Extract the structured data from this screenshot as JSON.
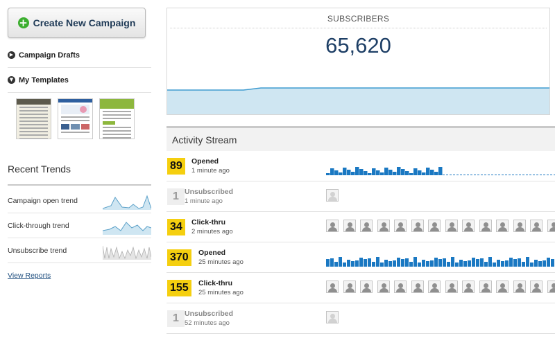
{
  "sidebar": {
    "create_button": "Create New Campaign",
    "drafts_label": "Campaign Drafts",
    "templates_label": "My Templates",
    "trends_title": "Recent Trends",
    "trends": [
      {
        "label": "Campaign open trend"
      },
      {
        "label": "Click-through trend"
      },
      {
        "label": "Unsubscribe trend"
      }
    ],
    "view_reports": "View Reports"
  },
  "subscribers": {
    "title": "SUBSCRIBERS",
    "count": "65,620"
  },
  "activity": {
    "title": "Activity Stream",
    "rows": [
      {
        "count": "89",
        "type": "Opened",
        "time": "1 minute ago",
        "viz": "bars",
        "active": true
      },
      {
        "count": "1",
        "type": "Unsubscribed",
        "time": "1 minute ago",
        "viz": "avatars",
        "avatars": 1,
        "active": false
      },
      {
        "count": "34",
        "type": "Click-thru",
        "time": "2 minutes ago",
        "viz": "avatars",
        "avatars": 14,
        "active": true
      },
      {
        "count": "370",
        "type": "Opened",
        "time": "25 minutes ago",
        "viz": "bars_full",
        "active": true
      },
      {
        "count": "155",
        "type": "Click-thru",
        "time": "25 minutes ago",
        "viz": "avatars",
        "avatars": 14,
        "active": true
      },
      {
        "count": "1",
        "type": "Unsubscribed",
        "time": "52 minutes ago",
        "viz": "avatars",
        "avatars": 1,
        "active": false
      }
    ]
  },
  "colors": {
    "accent_blue": "#1a78c2",
    "badge_yellow": "#f5cf0f",
    "area_fill": "#cfe6f2",
    "create_green": "#3cae2f"
  },
  "icons": {
    "create": "plus-circle-icon",
    "drafts": "chevron-right-circle-icon",
    "templates": "chevron-down-circle-icon",
    "user": "user-avatar-icon"
  }
}
